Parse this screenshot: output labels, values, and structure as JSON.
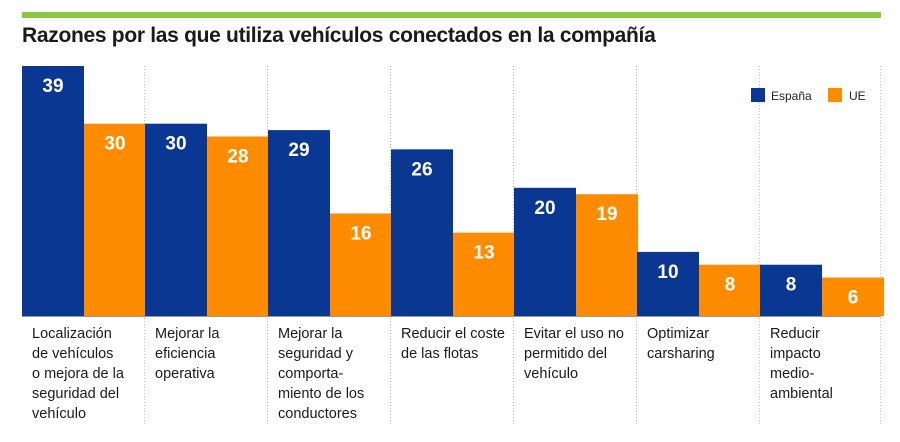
{
  "chart_data": {
    "type": "bar",
    "title": "Razones por las que utiliza vehículos conectados en la compañía",
    "categories": [
      [
        "Localización",
        "de vehículos",
        "o mejora de la",
        "seguridad del",
        "vehículo"
      ],
      [
        "Mejorar la",
        "eficiencia",
        "operativa"
      ],
      [
        "Mejorar la",
        "seguridad y",
        "comporta-",
        "miento de los",
        "conductores"
      ],
      [
        "Reducir el coste",
        "de las flotas"
      ],
      [
        "Evitar el uso no",
        "permitido del",
        "vehículo"
      ],
      [
        "Optimizar",
        "carsharing"
      ],
      [
        "Reducir",
        "impacto",
        "medio-",
        "ambiental"
      ]
    ],
    "series": [
      {
        "name": "España",
        "values": [
          39,
          30,
          29,
          26,
          20,
          10,
          8
        ]
      },
      {
        "name": "UE",
        "values": [
          30,
          28,
          16,
          13,
          19,
          8,
          6
        ]
      }
    ],
    "ylim": [
      0,
      39
    ],
    "legend_position": "top-right",
    "xlabel": "",
    "ylabel": "",
    "grid": false
  },
  "colors": {
    "spain": "#0a3791",
    "eu": "#ff8c00",
    "accent_rule": "#8dc63f",
    "gridline": "#bbbbbb",
    "baseline": "#999999"
  }
}
